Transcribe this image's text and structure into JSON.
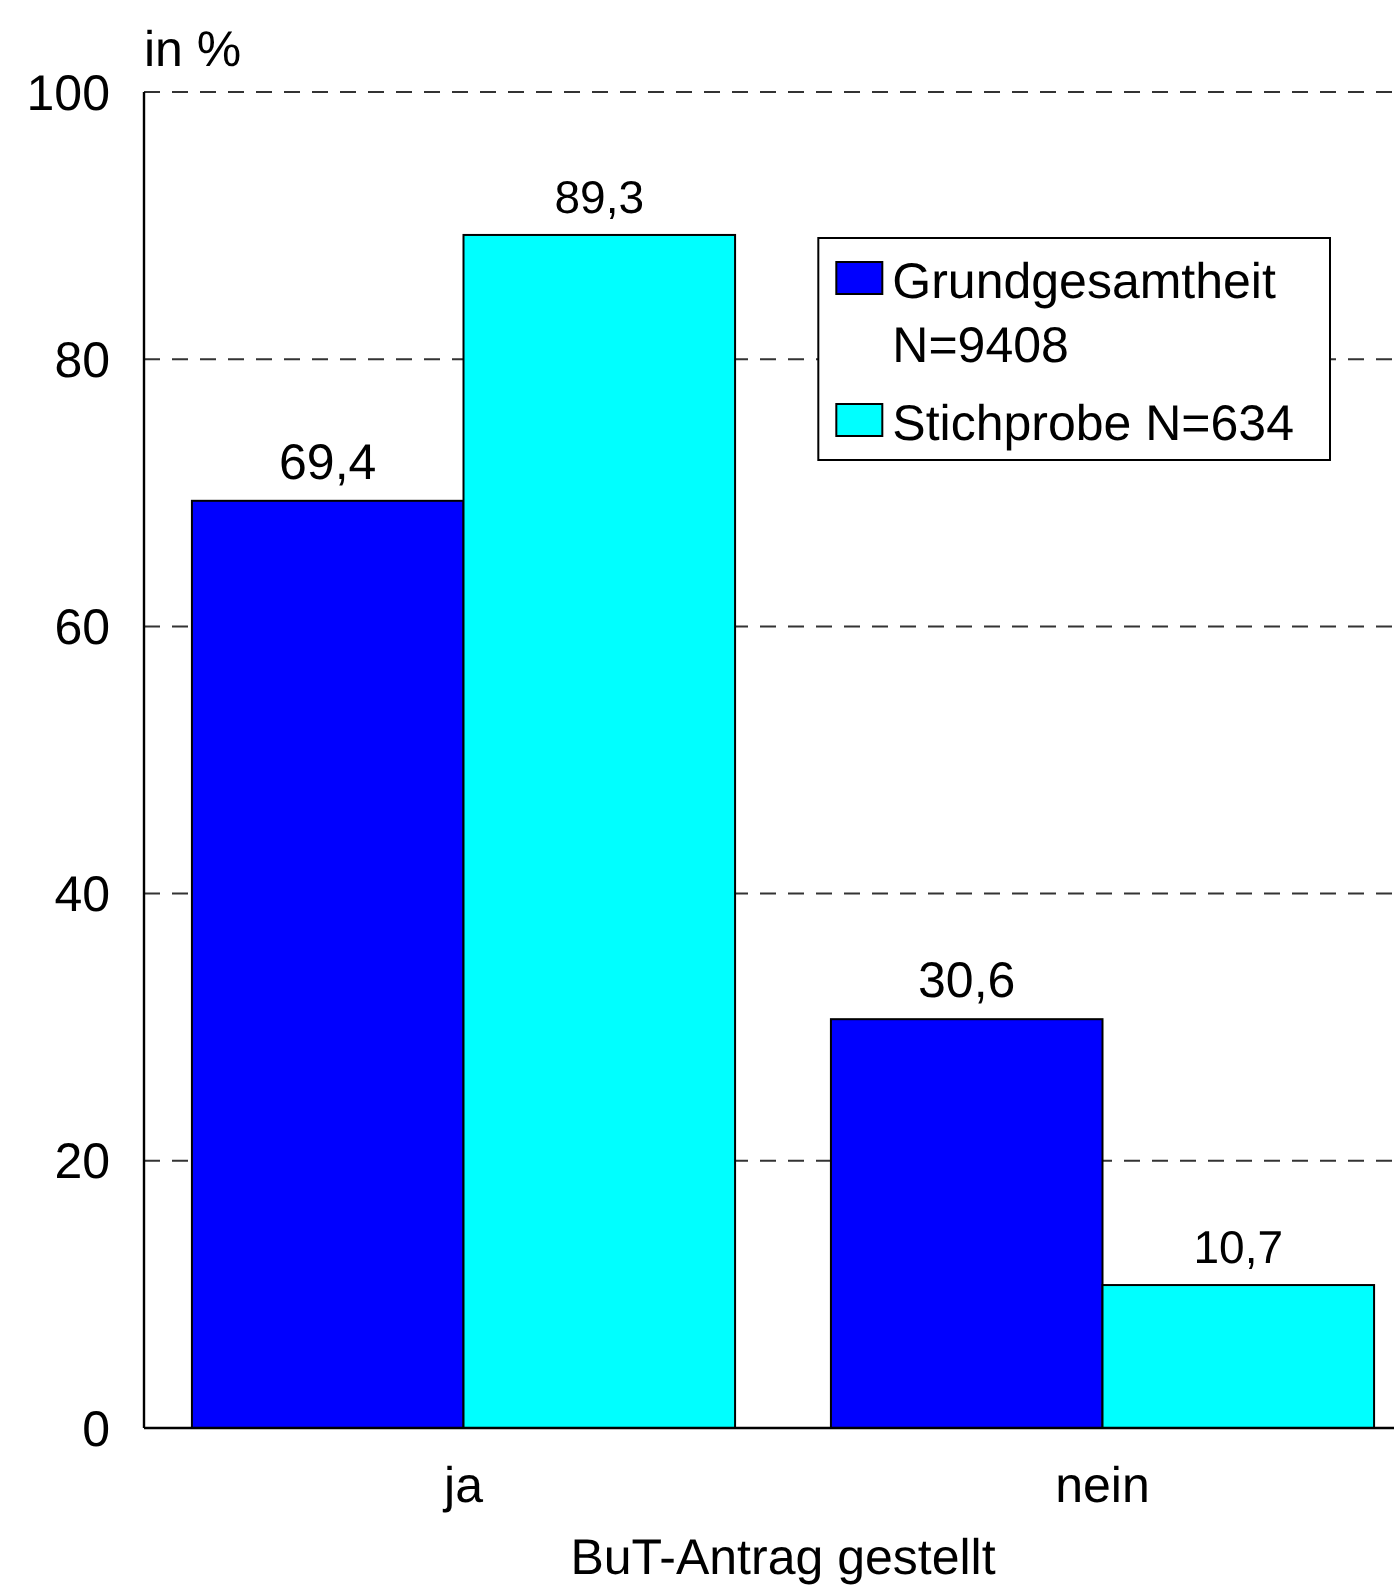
{
  "chart_data": {
    "type": "bar",
    "ylabel": "in %",
    "xlabel": "BuT-Antrag gestellt",
    "categories": [
      "ja",
      "nein"
    ],
    "series": [
      {
        "name": "Grundgesamtheit N=9408",
        "color": "#0000ff",
        "values": [
          69.4,
          30.6
        ],
        "value_labels": [
          "69,4",
          "30,6"
        ]
      },
      {
        "name": "Stichprobe N=634",
        "color": "#00ffff",
        "values": [
          89.3,
          10.7
        ],
        "value_labels": [
          "89,3",
          "10,7"
        ]
      }
    ],
    "ylim": [
      0,
      100
    ],
    "yticks": [
      0,
      20,
      40,
      60,
      80,
      100
    ],
    "grid": "y",
    "legend": "top right"
  }
}
